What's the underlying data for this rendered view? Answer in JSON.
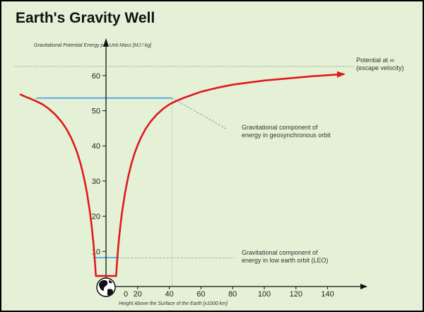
{
  "chart_data": {
    "type": "line",
    "title": "Earth's Gravity Well",
    "ylabel": "Gravitational Potential Energy per Unit Mass [MJ / kg]",
    "xlabel": "Height Above the Surface of the Earth [x1000 km]",
    "x_ticks": [
      0,
      20,
      40,
      60,
      80,
      100,
      120,
      140
    ],
    "y_ticks": [
      10,
      20,
      30,
      40,
      50,
      60
    ],
    "xlim": [
      -50,
      155
    ],
    "ylim": [
      0,
      68
    ],
    "grid": false,
    "series": [
      {
        "color": "#e0191c",
        "x": [
          -54,
          -50,
          -45,
          -40,
          -36,
          -32,
          -28,
          -25,
          -22,
          -20,
          -18,
          -16,
          -14,
          -12,
          -10,
          -9,
          -8,
          -7.5,
          -7,
          -6.8,
          -6.6,
          -6.4,
          6.4,
          6.6,
          6.8,
          7,
          7.5,
          8,
          9,
          10,
          12,
          14,
          16,
          18,
          20,
          22,
          25,
          28,
          32,
          36,
          40,
          45,
          50,
          60,
          70,
          80,
          90,
          100,
          110,
          120,
          130,
          140,
          150
        ],
        "y": [
          54.6,
          53.8,
          52.9,
          51.8,
          50.5,
          48.9,
          46.8,
          44.8,
          42.3,
          40.2,
          37.8,
          34.8,
          31.2,
          26.6,
          20.7,
          17.0,
          12.6,
          10.0,
          7.1,
          5.8,
          4.4,
          3.0,
          3.0,
          4.4,
          5.8,
          7.1,
          10.0,
          12.6,
          17.0,
          20.7,
          26.6,
          31.2,
          34.8,
          37.8,
          40.2,
          42.3,
          44.8,
          46.8,
          48.9,
          50.5,
          51.8,
          52.9,
          53.8,
          55.4,
          56.5,
          57.4,
          58.0,
          58.6,
          59.0,
          59.4,
          59.8,
          60.1,
          60.4
        ]
      }
    ],
    "reference_lines": [
      {
        "y": 62.6,
        "style": "dotted",
        "label_line1": "Potential at ∞",
        "label_line2": "(escape velocity)"
      },
      {
        "y": 53.6,
        "color": "#3f9be8",
        "x_from": -44,
        "x_to": 41.7,
        "label_line1": "Gravitational component of",
        "label_line2": "energy in geosynchronous orbit"
      },
      {
        "y": 8.2,
        "color": "#3f9be8",
        "x_from": -8.2,
        "x_to": 8.2,
        "label_line1": "Gravitational component of",
        "label_line2": "energy in low earth orbit (LEO)"
      }
    ]
  },
  "earth_icon": "earth-globe-icon"
}
